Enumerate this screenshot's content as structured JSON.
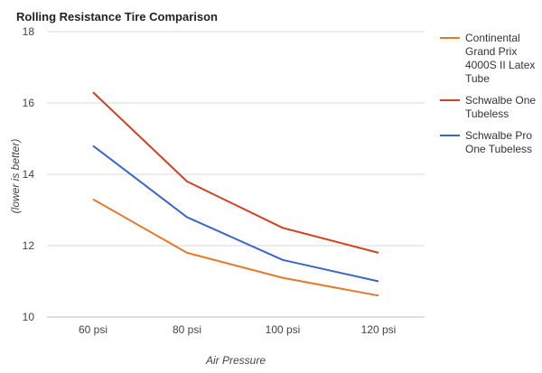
{
  "chart_data": {
    "type": "line",
    "title": "Rolling Resistance Tire Comparison",
    "xlabel": "Air Pressure",
    "ylabel": "(lower is better)",
    "categories": [
      "60 psi",
      "80 psi",
      "100 psi",
      "120 psi"
    ],
    "ylim": [
      10,
      18
    ],
    "yticks": [
      10,
      12,
      14,
      16,
      18
    ],
    "grid": true,
    "legend_position": "right",
    "series": [
      {
        "name": "Continental Grand Prix 4000S II Latex Tube",
        "legend_lines": [
          "Continental",
          "Grand Prix",
          "4000S II Latex",
          "Tube"
        ],
        "color": "#e8792b",
        "values": [
          13.3,
          11.8,
          11.1,
          10.6
        ]
      },
      {
        "name": "Schwalbe One Tubeless",
        "legend_lines": [
          "Schwalbe One",
          "Tubeless"
        ],
        "color": "#d2401f",
        "values": [
          16.3,
          13.8,
          12.5,
          11.8
        ]
      },
      {
        "name": "Schwalbe Pro One Tubeless",
        "legend_lines": [
          "Schwalbe Pro",
          "One Tubeless"
        ],
        "color": "#3a65c9",
        "values": [
          14.8,
          12.8,
          11.6,
          11.0
        ]
      }
    ]
  }
}
